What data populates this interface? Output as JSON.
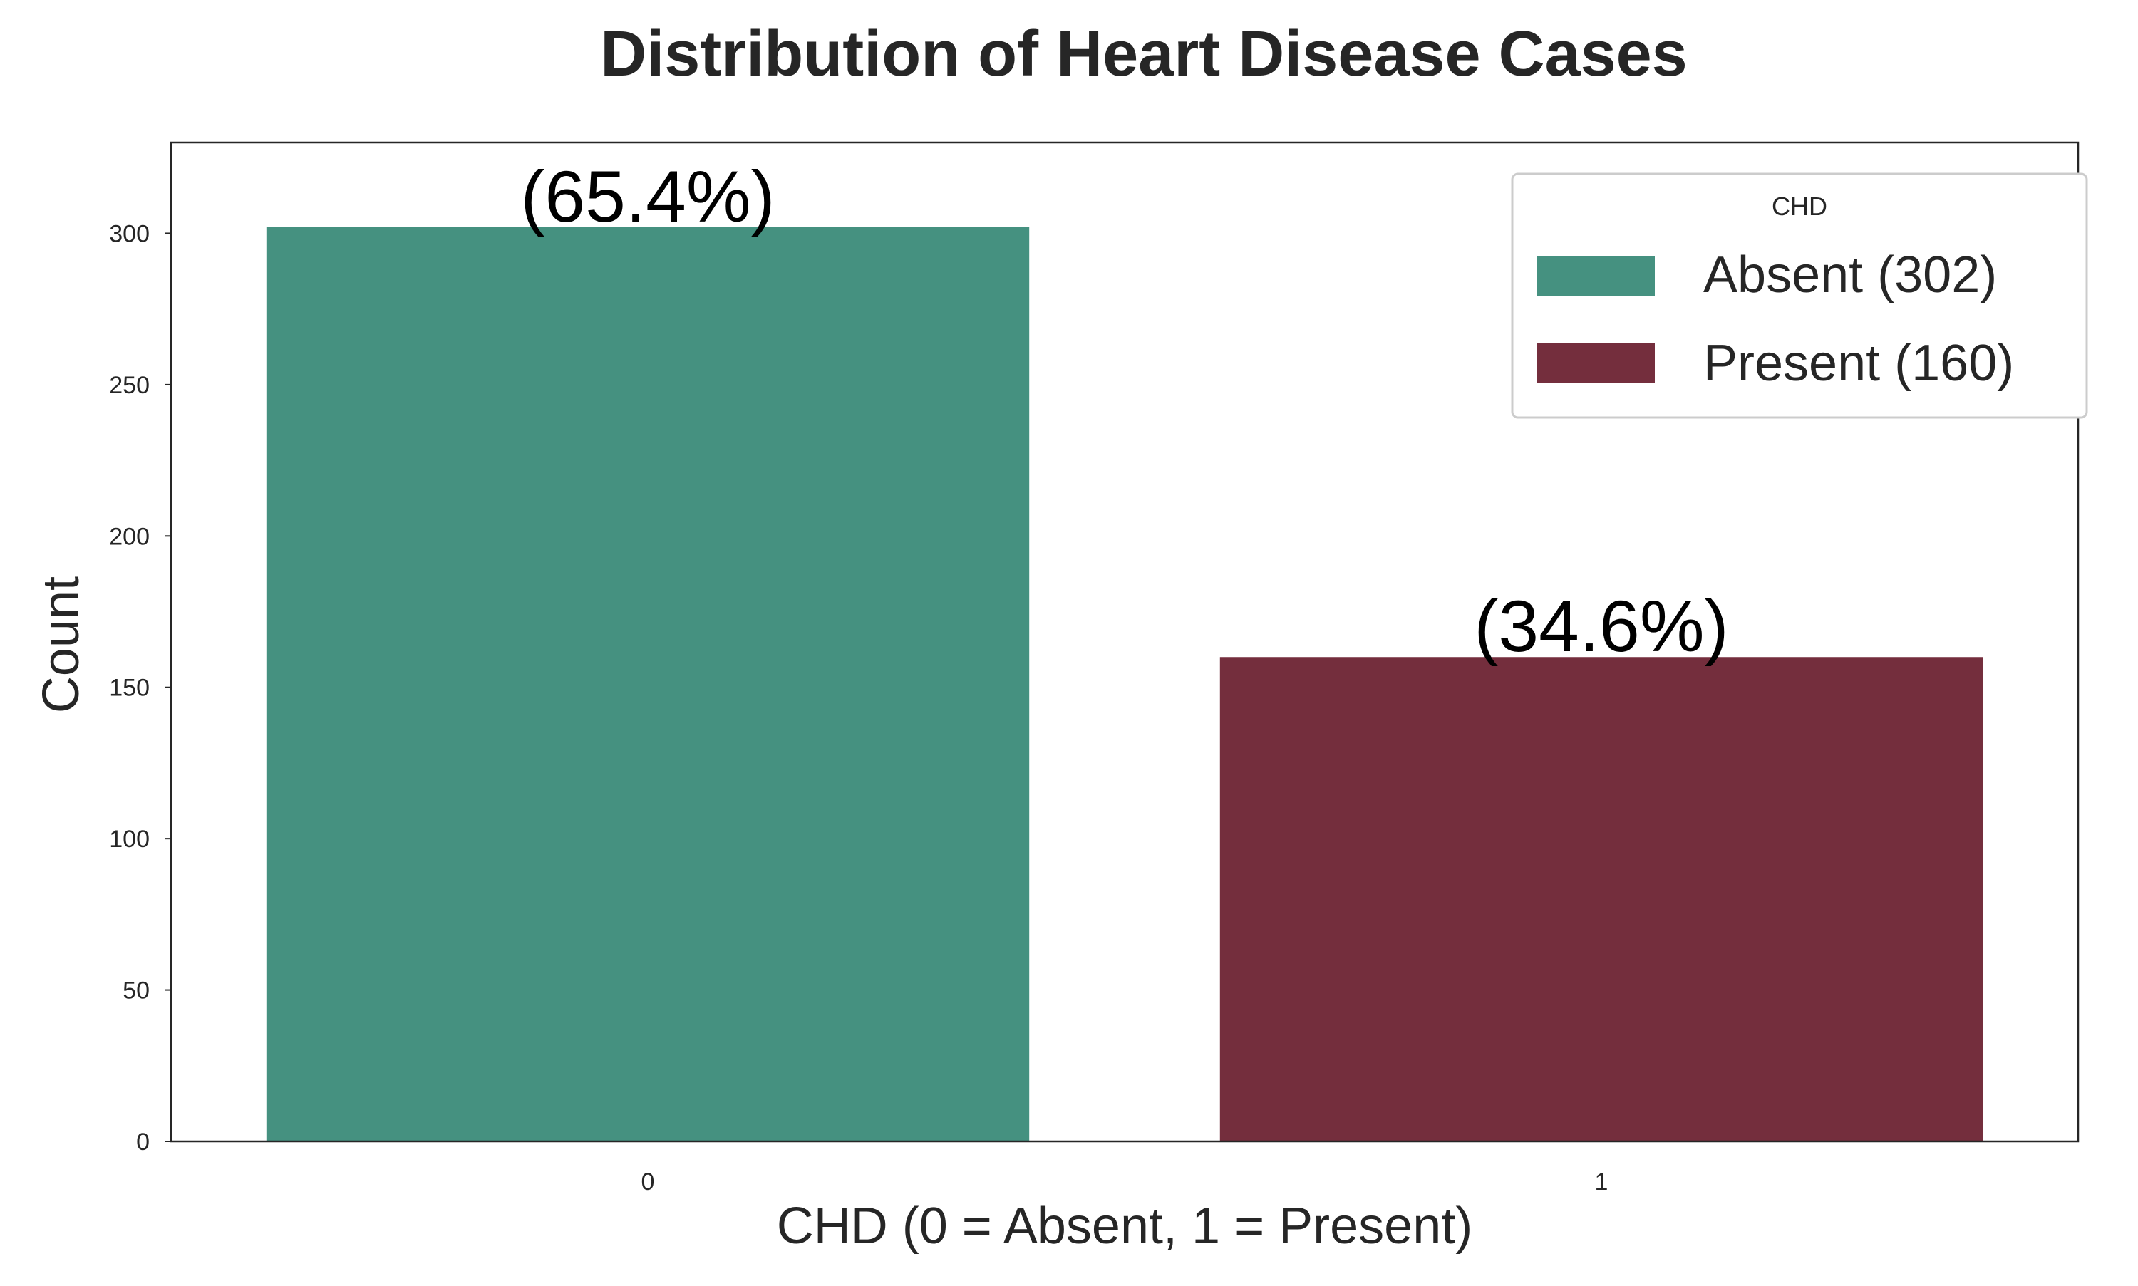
{
  "chart_data": {
    "type": "bar",
    "title": "Distribution of Heart Disease Cases",
    "xlabel": "CHD (0 = Absent, 1 = Present)",
    "ylabel": "Count",
    "categories": [
      "0",
      "1"
    ],
    "values": [
      302,
      160
    ],
    "bar_labels": [
      "(65.4%)",
      "(34.6%)"
    ],
    "colors": [
      "#459180",
      "#742e3d"
    ],
    "ylim": [
      0,
      330
    ],
    "yticks": [
      0,
      50,
      100,
      150,
      200,
      250,
      300
    ],
    "ytick_labels": [
      "0",
      "50",
      "100",
      "150",
      "200",
      "250",
      "300"
    ],
    "grid": false,
    "legend": {
      "title": "CHD",
      "placement": "top-right",
      "entries": [
        {
          "label": "Absent (302)",
          "color": "#459180"
        },
        {
          "label": "Present (160)",
          "color": "#742e3d"
        }
      ]
    }
  }
}
